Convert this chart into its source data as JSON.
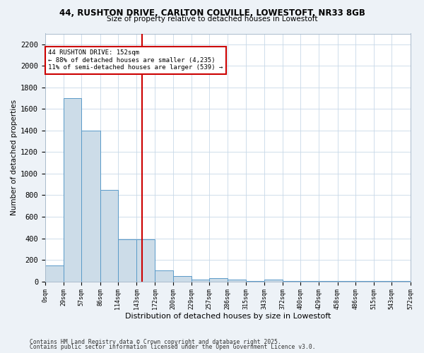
{
  "title_line1": "44, RUSHTON DRIVE, CARLTON COLVILLE, LOWESTOFT, NR33 8GB",
  "title_line2": "Size of property relative to detached houses in Lowestoft",
  "xlabel": "Distribution of detached houses by size in Lowestoft",
  "ylabel": "Number of detached properties",
  "bin_edges": [
    0,
    29,
    57,
    86,
    114,
    143,
    172,
    200,
    229,
    257,
    286,
    315,
    343,
    372,
    400,
    429,
    458,
    486,
    515,
    543,
    572
  ],
  "bin_heights": [
    150,
    1700,
    1400,
    850,
    390,
    390,
    105,
    50,
    20,
    30,
    20,
    5,
    15,
    5,
    2,
    2,
    2,
    2,
    2,
    2
  ],
  "bar_color": "#ccdce8",
  "bar_edgecolor": "#5a9ac8",
  "vline_x": 152,
  "vline_color": "#cc0000",
  "annotation_title": "44 RUSHTON DRIVE: 152sqm",
  "annotation_line1": "← 88% of detached houses are smaller (4,235)",
  "annotation_line2": "11% of semi-detached houses are larger (539) →",
  "annotation_box_edgecolor": "#cc0000",
  "ylim": [
    0,
    2300
  ],
  "yticks": [
    0,
    200,
    400,
    600,
    800,
    1000,
    1200,
    1400,
    1600,
    1800,
    2000,
    2200
  ],
  "footnote_line1": "Contains HM Land Registry data © Crown copyright and database right 2025.",
  "footnote_line2": "Contains public sector information licensed under the Open Government Licence v3.0.",
  "bg_color": "#edf2f7",
  "plot_bg_color": "#ffffff",
  "grid_color": "#c8d8e8"
}
